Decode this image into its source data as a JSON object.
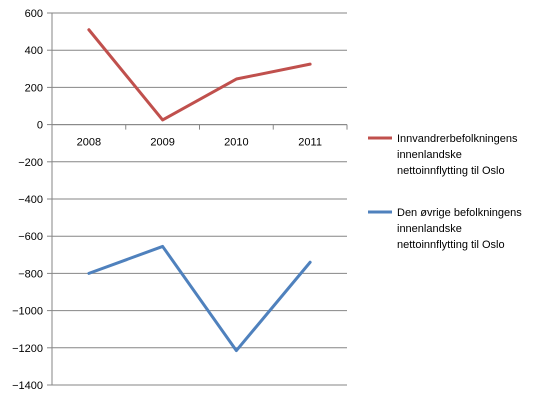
{
  "chart_data": {
    "type": "line",
    "title": "",
    "xlabel": "",
    "ylabel": "",
    "categories": [
      "2008",
      "2009",
      "2010",
      "2011"
    ],
    "ylim": [
      -1400,
      600
    ],
    "y_tick_step": 200,
    "y_ticks": [
      "600",
      "400",
      "200",
      "0",
      "−200",
      "−400",
      "−600",
      "−800",
      "−1000",
      "−1200",
      "−1400"
    ],
    "grid": true,
    "legend_position": "right",
    "series": [
      {
        "name_lines": [
          "Innvandrerbefolkningens",
          "innenlandske",
          "nettoinnflytting til Oslo"
        ],
        "color": "#C0504D",
        "values": [
          510,
          25,
          245,
          325
        ]
      },
      {
        "name_lines": [
          "Den øvrige befolkningens",
          "innenlandske",
          "nettoinnflytting til Oslo"
        ],
        "color": "#4F81BD",
        "values": [
          -800,
          -655,
          -1215,
          -740
        ]
      }
    ]
  }
}
